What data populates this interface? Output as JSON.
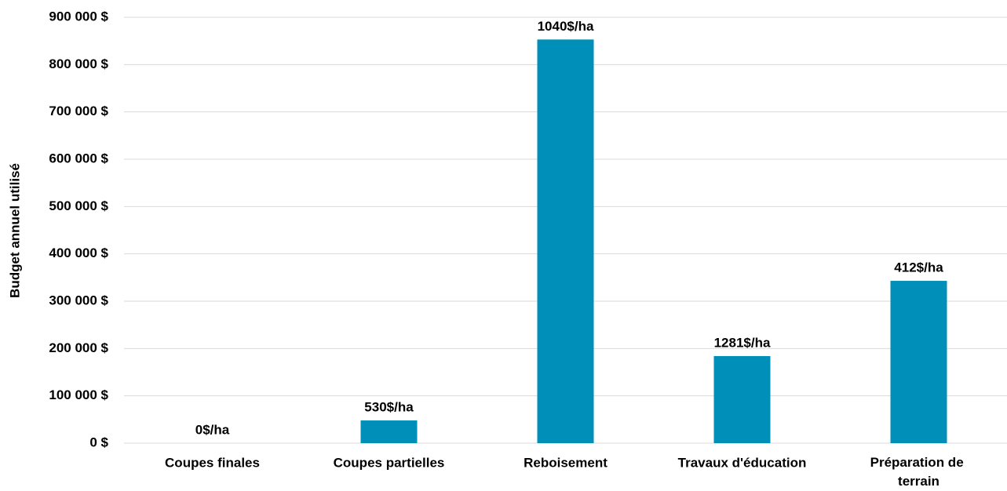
{
  "chart_data": {
    "type": "bar",
    "y_label": "Budget annuel utilisé",
    "categories": [
      "Coupes finales",
      "Coupes partielles",
      "Reboisement",
      "Travaux d'éducation",
      "Préparation de terrain"
    ],
    "values": [
      0,
      48000,
      853000,
      184000,
      343000
    ],
    "annotations": [
      "0$/ha",
      "530$/ha",
      "1040$/ha",
      "1281$/ha",
      "412$/ha"
    ],
    "color": "#008fb8",
    "ylim": [
      0,
      900000
    ],
    "yticks": [
      {
        "value": 0,
        "label": "0 $"
      },
      {
        "value": 100000,
        "label": "100 000 $"
      },
      {
        "value": 200000,
        "label": "200 000 $"
      },
      {
        "value": 300000,
        "label": "300 000 $"
      },
      {
        "value": 400000,
        "label": "400 000 $"
      },
      {
        "value": 500000,
        "label": "500 000 $"
      },
      {
        "value": 600000,
        "label": "600 000 $"
      },
      {
        "value": 700000,
        "label": "700 000 $"
      },
      {
        "value": 800000,
        "label": "800 000 $"
      },
      {
        "value": 900000,
        "label": "900 000 $"
      }
    ],
    "grid": true
  }
}
